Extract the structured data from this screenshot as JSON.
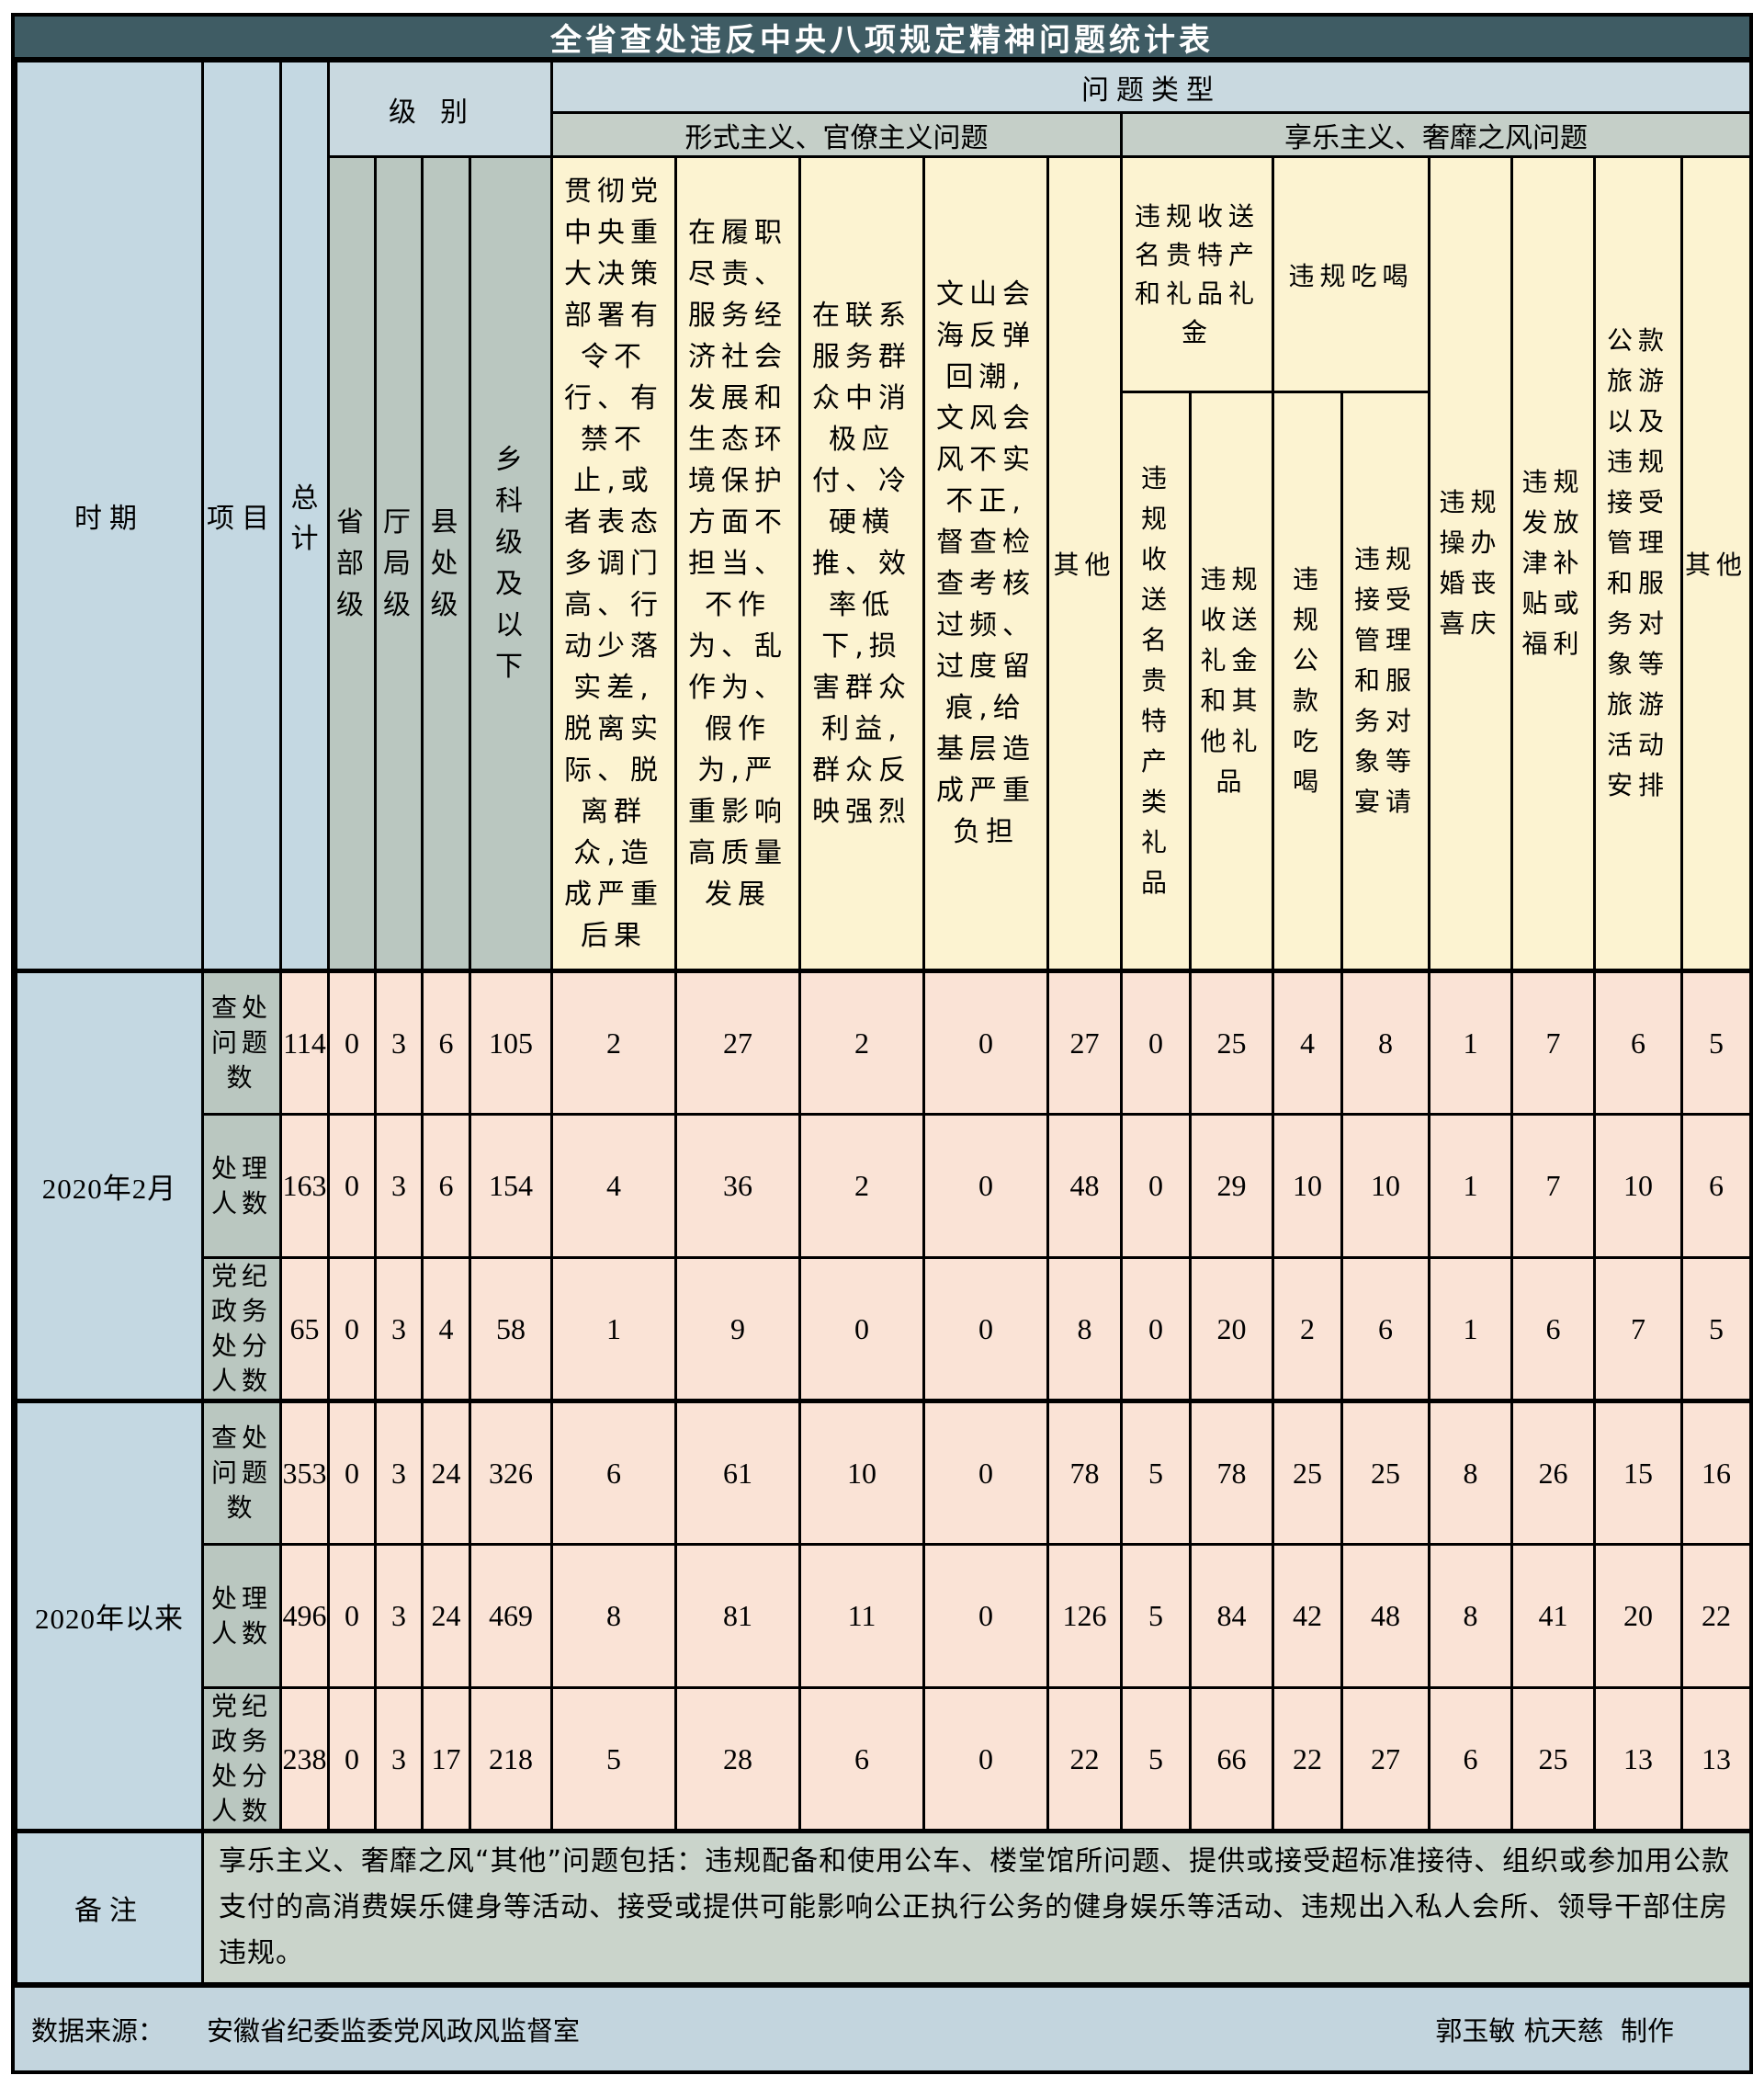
{
  "title": "全省查处违反中央八项规定精神问题统计表",
  "header": {
    "period": "时期",
    "item": "项目",
    "total": "总计",
    "level_group": "级别",
    "problem_type": "问题类型",
    "formalism_group": "形式主义、官僚主义问题",
    "hedonism_group": "享乐主义、奢靡之风问题",
    "levels": [
      "省部级",
      "厅局级",
      "县处级",
      "乡科级及以下"
    ],
    "formalism_cols": [
      "贯彻党中央重大决策部署有令不行、有禁不止,或者表态多调门高、行动少落实差,脱离实际、脱离群众,造成严重后果",
      "在履职尽责、服务经济社会发展和生态环境保护方面不担当、不作为、乱作为、假作为,严重影响高质量发展",
      "在联系服务群众中消极应付、冷硬横推、效率低下,损害群众利益,群众反映强烈",
      "文山会海反弹回潮,文风会风不实不正,督查检查考核过频、过度留痕,给基层造成严重负担",
      "其他"
    ],
    "gift_subgroup": "违规收送名贵特产和礼品礼金",
    "gift_cols": [
      "违规收送名贵特产类礼品",
      "违规收送礼金和其他礼品"
    ],
    "dining_subgroup": "违规吃喝",
    "dining_cols": [
      "违规公款吃喝",
      "违规接受管理和服务对象等宴请"
    ],
    "single_cols": [
      "违规操办婚丧喜庆",
      "违规发放津补贴或福利",
      "公款旅游以及违规接受管理和服务对象等旅游活动安排",
      "其他"
    ]
  },
  "body": {
    "groups": [
      {
        "period": "2020年2月",
        "rows": [
          {
            "item": "查处问题数",
            "values": [
              114,
              0,
              3,
              6,
              105,
              2,
              27,
              2,
              0,
              27,
              0,
              25,
              4,
              8,
              1,
              7,
              6,
              5
            ]
          },
          {
            "item": "处理人数",
            "values": [
              163,
              0,
              3,
              6,
              154,
              4,
              36,
              2,
              0,
              48,
              0,
              29,
              10,
              10,
              1,
              7,
              10,
              6
            ]
          },
          {
            "item": "党纪政务处分人数",
            "values": [
              65,
              0,
              3,
              4,
              58,
              1,
              9,
              0,
              0,
              8,
              0,
              20,
              2,
              6,
              1,
              6,
              7,
              5
            ]
          }
        ]
      },
      {
        "period": "2020年以来",
        "rows": [
          {
            "item": "查处问题数",
            "values": [
              353,
              0,
              3,
              24,
              326,
              6,
              61,
              10,
              0,
              78,
              5,
              78,
              25,
              25,
              8,
              26,
              15,
              16
            ]
          },
          {
            "item": "处理人数",
            "values": [
              496,
              0,
              3,
              24,
              469,
              8,
              81,
              11,
              0,
              126,
              5,
              84,
              42,
              48,
              8,
              41,
              20,
              22
            ]
          },
          {
            "item": "党纪政务处分人数",
            "values": [
              238,
              0,
              3,
              17,
              218,
              5,
              28,
              6,
              0,
              22,
              5,
              66,
              22,
              27,
              6,
              25,
              13,
              13
            ]
          }
        ]
      }
    ]
  },
  "remark": {
    "label": "备注",
    "text": "享乐主义、奢靡之风“其他”问题包括：违规配备和使用公车、楼堂馆所问题、提供或接受超标准接待、组织或参加用公款支付的高消费娱乐健身等活动、接受或提供可能影响公正执行公务的健身娱乐等活动、违规出入私人会所、领导干部住房违规。"
  },
  "footer": {
    "source_label": "数据来源：",
    "source": "安徽省纪委监委党风政风监督室",
    "credit": "郭玉敏 杭天慈  制作"
  },
  "colors": {
    "title_bg": "#3F5C64",
    "title_text": "#FFFFFF",
    "band_blue": "#C9D9E0",
    "band_green": "#C5CFC8",
    "blue_cell": "#C4D8E2",
    "green_cell": "#BAC7C0",
    "yellow_cell": "#FCF3D1",
    "pink_cell": "#FAE3D6",
    "remark_bg": "#CAD4CB",
    "footer_bg": "#C3D5DE",
    "border": "#000000"
  }
}
